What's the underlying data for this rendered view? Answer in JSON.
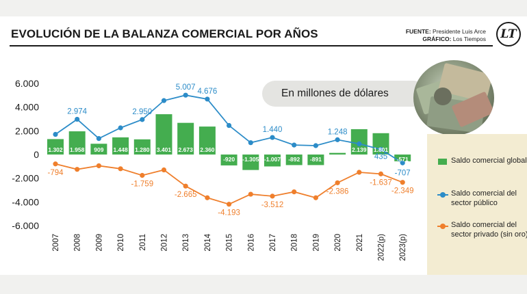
{
  "title": "EVOLUCIÓN DE LA BALANZA COMERCIAL POR AÑOS",
  "credits": {
    "source_label": "FUENTE:",
    "source_value": "Presidente Luis Arce",
    "graphic_label": "GRÁFICO:",
    "graphic_value": "Los Tiempos"
  },
  "logo_text": "LT",
  "unit_note": "En millones de dólares",
  "colors": {
    "global": "#44ad4f",
    "public": "#2c8cc8",
    "private": "#ef7f2c",
    "legend_bg": "#f3ecd2"
  },
  "legend": [
    {
      "label": "Saldo comercial global",
      "kind": "bar",
      "color": "#44ad4f"
    },
    {
      "label": "Saldo comercial del sector público",
      "kind": "line",
      "color": "#2c8cc8"
    },
    {
      "label": "Saldo comercial del sector privado (sin oro)",
      "kind": "line",
      "color": "#ef7f2c"
    }
  ],
  "chart_data": {
    "type": "bar",
    "title": "EVOLUCIÓN DE LA BALANZA COMERCIAL POR AÑOS",
    "categories": [
      "2007",
      "2008",
      "2009",
      "2010",
      "2011",
      "2012",
      "2013",
      "2014",
      "2015",
      "2016",
      "2017",
      "2018",
      "2019",
      "2020",
      "2021",
      "2022(p)",
      "2023(p)"
    ],
    "ylim": [
      -6000,
      6000
    ],
    "yticks": [
      6000,
      4000,
      2000,
      0,
      -2000,
      -4000,
      -6000
    ],
    "ytick_labels": [
      "6.000",
      "4.000",
      "2.000",
      "0",
      "-2.000",
      "-4.000",
      "-6.000"
    ],
    "grid": false,
    "legend_position": "right",
    "series": [
      {
        "name": "Saldo comercial global",
        "kind": "bar",
        "values": [
          1302,
          1958,
          909,
          1448,
          1280,
          3401,
          2673,
          2360,
          -920,
          -1305,
          -1007,
          -892,
          -891,
          137,
          2139,
          1801,
          -571
        ],
        "labels": [
          "1.302",
          "1.958",
          "909",
          "1.448",
          "1.280",
          "3.401",
          "2.673",
          "2.360",
          "-920",
          "-1.305",
          "-1.007",
          "-892",
          "-891",
          "137",
          "2.139",
          "1.801",
          "-571"
        ]
      },
      {
        "name": "Saldo comercial del sector público",
        "kind": "line",
        "values": [
          1700,
          2974,
          1350,
          2250,
          2950,
          4550,
          5007,
          4676,
          2450,
          1000,
          1440,
          800,
          750,
          1248,
          900,
          435,
          -707
        ],
        "labels": [
          "",
          "2.974",
          "",
          "",
          "2.950",
          "",
          "5.007",
          "4.676",
          "",
          "",
          "1.440",
          "",
          "",
          "1.248",
          "",
          "435",
          "-707"
        ]
      },
      {
        "name": "Saldo comercial del sector privado (sin oro)",
        "kind": "line",
        "values": [
          -794,
          -1250,
          -950,
          -1200,
          -1759,
          -1300,
          -2665,
          -3650,
          -4193,
          -3350,
          -3512,
          -3150,
          -3650,
          -2386,
          -1500,
          -1637,
          -2349
        ],
        "labels": [
          "-794",
          "",
          "",
          "",
          "-1.759",
          "",
          "-2.665",
          "",
          "-4.193",
          "",
          "-3.512",
          "",
          "",
          "-2.386",
          "",
          "-1.637",
          "-2.349"
        ]
      }
    ]
  }
}
